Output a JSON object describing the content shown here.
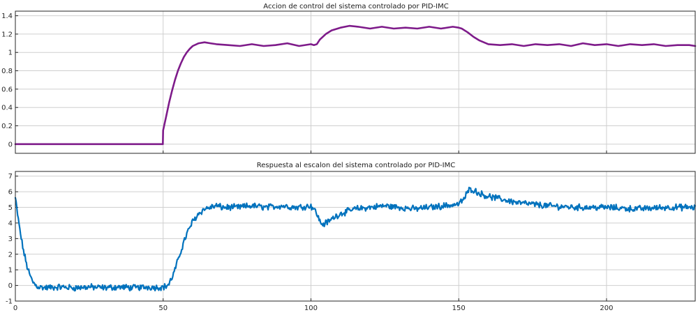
{
  "chart_data": [
    {
      "type": "line",
      "title": "Accion de control del sistema controlado por PID-IMC",
      "xlabel": "",
      "ylabel": "",
      "xlim": [
        0,
        230
      ],
      "ylim": [
        -0.1,
        1.45
      ],
      "xticks": [
        0,
        50,
        100,
        150,
        200
      ],
      "xtick_labels": [
        "",
        "",
        "",
        "",
        ""
      ],
      "yticks": [
        0,
        0.2,
        0.4,
        0.6,
        0.8,
        1,
        1.2,
        1.4
      ],
      "ytick_labels": [
        "0",
        "0.2",
        "0.4",
        "0.6",
        "0.8",
        "1",
        "1.2",
        "1.4"
      ],
      "grid": true,
      "color": "#7e1b8a",
      "series": [
        {
          "x": [
            0,
            49.9,
            50,
            51,
            52,
            53,
            54,
            55,
            56,
            57,
            58,
            59,
            60,
            62,
            64,
            66,
            68,
            72,
            76,
            80,
            84,
            88,
            92,
            96,
            100,
            101,
            102,
            103,
            105,
            107,
            110,
            113,
            116,
            120,
            124,
            128,
            132,
            136,
            140,
            144,
            148,
            150,
            151,
            153,
            155,
            157,
            160,
            164,
            168,
            172,
            176,
            180,
            184,
            188,
            192,
            196,
            200,
            204,
            208,
            212,
            216,
            220,
            224,
            228,
            230
          ],
          "values": [
            0,
            0,
            0.15,
            0.3,
            0.45,
            0.58,
            0.7,
            0.8,
            0.88,
            0.95,
            1.0,
            1.04,
            1.07,
            1.1,
            1.11,
            1.1,
            1.09,
            1.08,
            1.07,
            1.09,
            1.07,
            1.08,
            1.1,
            1.07,
            1.09,
            1.08,
            1.09,
            1.14,
            1.2,
            1.24,
            1.27,
            1.29,
            1.28,
            1.26,
            1.28,
            1.26,
            1.27,
            1.26,
            1.28,
            1.26,
            1.28,
            1.27,
            1.26,
            1.22,
            1.17,
            1.13,
            1.09,
            1.08,
            1.09,
            1.07,
            1.09,
            1.08,
            1.09,
            1.07,
            1.1,
            1.08,
            1.09,
            1.07,
            1.09,
            1.08,
            1.09,
            1.07,
            1.08,
            1.08,
            1.07
          ]
        }
      ]
    },
    {
      "type": "line",
      "title": "Respuesta al escalon del sistema controlado por PID-IMC",
      "xlabel": "",
      "ylabel": "",
      "xlim": [
        0,
        230
      ],
      "ylim": [
        -1,
        7.3
      ],
      "xticks": [
        0,
        50,
        100,
        150,
        200
      ],
      "xtick_labels": [
        "0",
        "50",
        "100",
        "150",
        "200"
      ],
      "yticks": [
        -1,
        0,
        1,
        2,
        3,
        4,
        5,
        6,
        7
      ],
      "ytick_labels": [
        "-1",
        "0",
        "1",
        "2",
        "3",
        "4",
        "5",
        "6",
        "7"
      ],
      "grid": true,
      "color": "#0072bd",
      "noise_amplitude": 0.16,
      "series": [
        {
          "x": [
            0,
            1,
            2,
            3,
            4,
            5,
            6,
            7,
            8,
            10,
            15,
            20,
            25,
            30,
            35,
            40,
            45,
            48,
            50,
            51,
            52,
            53,
            54,
            55,
            56,
            57,
            58,
            59,
            60,
            62,
            64,
            66,
            68,
            70,
            75,
            80,
            85,
            90,
            95,
            100,
            101,
            102,
            103,
            104,
            106,
            108,
            110,
            115,
            120,
            125,
            130,
            135,
            140,
            145,
            150,
            152,
            153,
            154,
            155,
            157,
            160,
            165,
            170,
            175,
            180,
            190,
            200,
            210,
            220,
            230
          ],
          "values": [
            5.6,
            4.2,
            3.0,
            2.0,
            1.2,
            0.6,
            0.2,
            0.0,
            -0.1,
            -0.15,
            -0.1,
            -0.15,
            -0.1,
            -0.15,
            -0.1,
            -0.15,
            -0.1,
            -0.12,
            -0.1,
            -0.05,
            0.1,
            0.5,
            1.0,
            1.6,
            2.2,
            2.8,
            3.3,
            3.7,
            4.1,
            4.6,
            4.9,
            5.0,
            5.1,
            5.0,
            5.0,
            5.1,
            5.0,
            5.1,
            5.0,
            5.1,
            4.9,
            4.6,
            4.1,
            3.9,
            4.1,
            4.4,
            4.6,
            4.9,
            5.0,
            5.1,
            5.0,
            4.9,
            5.0,
            5.1,
            5.2,
            5.6,
            6.0,
            6.2,
            6.1,
            5.9,
            5.7,
            5.5,
            5.3,
            5.2,
            5.1,
            5.0,
            5.0,
            4.9,
            5.0,
            5.0
          ]
        }
      ]
    }
  ]
}
